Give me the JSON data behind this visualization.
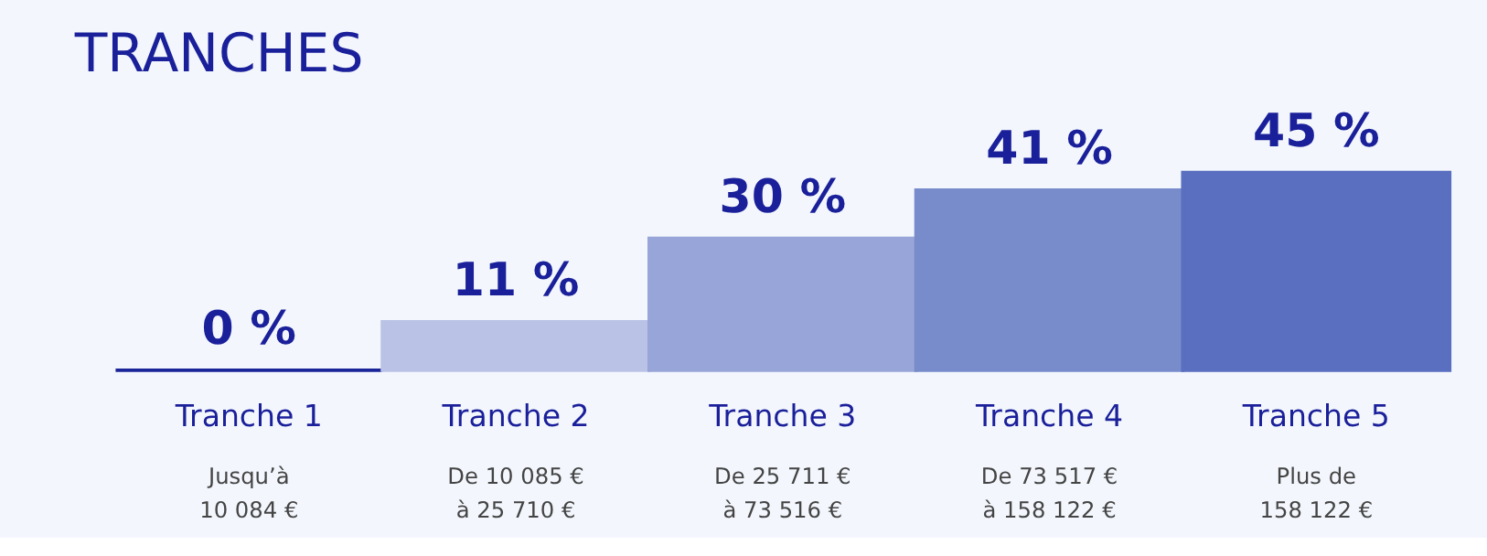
{
  "chart_data": {
    "type": "bar",
    "title": "TRANCHES",
    "categories": [
      "Tranche 1",
      "Tranche 2",
      "Tranche 3",
      "Tranche 4",
      "Tranche 5"
    ],
    "values": [
      0,
      11,
      30,
      41,
      45
    ],
    "value_labels": [
      "0 %",
      "11 %",
      "30 %",
      "41 %",
      "45 %"
    ],
    "colors": [
      "#1a2599",
      "#bac3e5",
      "#98a5d8",
      "#788ccb",
      "#5a6fc0"
    ],
    "annotations": [
      "Jusqu’à\n10 084 €",
      "De 10 085 €\nà 25 710 €",
      "De 25 711 €\nà 73 516 €",
      "De 73 517 €\nà 158 122 €",
      "Plus de\n158 122 €"
    ]
  }
}
